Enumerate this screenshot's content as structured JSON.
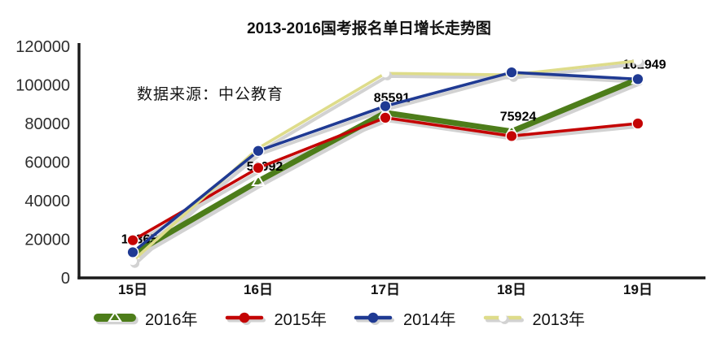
{
  "chart_data": {
    "type": "line",
    "title": "2013-2016国考报名单日增长走势图",
    "annotation": "数据来源：中公教育",
    "categories": [
      "15日",
      "16日",
      "17日",
      "18日",
      "19日"
    ],
    "series": [
      {
        "name": "2016年",
        "color": "#4d7d1a",
        "marker": "triangle",
        "line_width": 7,
        "labeled": true,
        "values": [
          12365,
          50092,
          85591,
          75924,
          102949
        ]
      },
      {
        "name": "2015年",
        "color": "#c40404",
        "marker": "circle",
        "line_width": 3.6,
        "values": [
          19500,
          57000,
          83000,
          73500,
          80000
        ]
      },
      {
        "name": "2014年",
        "color": "#1f3a93",
        "marker": "circle",
        "line_width": 3.6,
        "values": [
          13300,
          65800,
          89000,
          106500,
          103000
        ]
      },
      {
        "name": "2013年",
        "color": "#dedc8a",
        "marker": "white-circle",
        "line_width": 3.6,
        "values": [
          8800,
          67200,
          106000,
          105200,
          112500
        ]
      }
    ],
    "data_labels": [
      "12365",
      "50092",
      "85591",
      "75924",
      "102949"
    ],
    "xlabel": "",
    "ylabel": "",
    "ylim": [
      0,
      120000
    ],
    "ytick_step": 20000,
    "yticks": [
      "0",
      "20000",
      "40000",
      "60000",
      "80000",
      "100000",
      "120000"
    ],
    "grid": false,
    "legend_position": "bottom",
    "shadow_color": "#d2d2d2",
    "axis_color": "#1a1a1a"
  }
}
